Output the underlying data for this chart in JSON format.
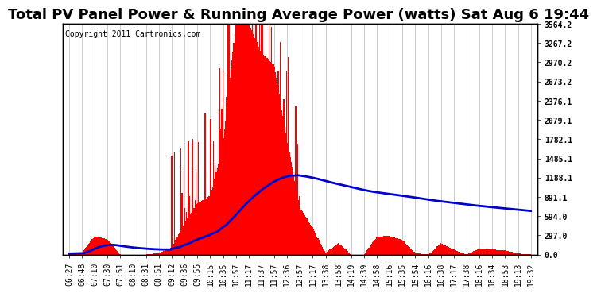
{
  "title": "Total PV Panel Power & Running Average Power (watts) Sat Aug 6 19:44",
  "copyright": "Copyright 2011 Cartronics.com",
  "background_color": "#ffffff",
  "plot_bg_color": "#ffffff",
  "grid_color": "#aaaaaa",
  "bar_color": "#ff0000",
  "line_color": "#0000cc",
  "yticks": [
    0.0,
    297.0,
    594.0,
    891.1,
    1188.1,
    1485.1,
    1782.1,
    2079.1,
    2376.1,
    2673.2,
    2970.2,
    3267.2,
    3564.2
  ],
  "ylim": [
    0,
    3564.2
  ],
  "x_labels": [
    "06:27",
    "06:48",
    "07:10",
    "07:30",
    "07:51",
    "08:10",
    "08:31",
    "08:51",
    "09:12",
    "09:36",
    "09:55",
    "10:15",
    "10:35",
    "10:57",
    "11:17",
    "11:37",
    "11:57",
    "12:36",
    "12:57",
    "13:17",
    "13:38",
    "13:58",
    "14:19",
    "14:39",
    "14:58",
    "15:16",
    "15:35",
    "15:54",
    "16:16",
    "16:38",
    "17:17",
    "17:38",
    "18:16",
    "18:34",
    "18:53",
    "19:13",
    "19:32"
  ],
  "title_fontsize": 13,
  "tick_fontsize": 7,
  "copyright_fontsize": 7
}
